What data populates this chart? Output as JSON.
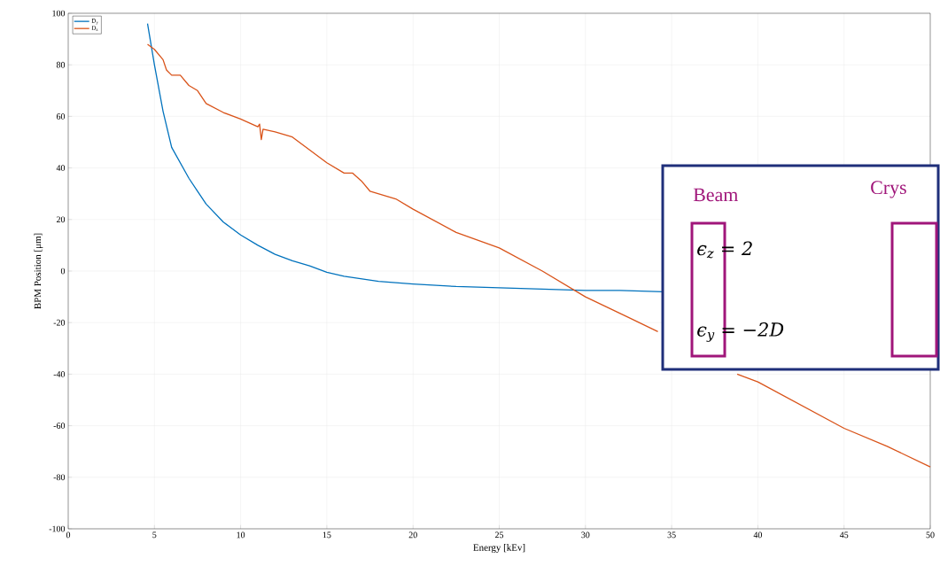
{
  "chart_data": {
    "type": "line",
    "xlabel": "Energy [kEv]",
    "ylabel": "BPM Position [μm]",
    "xlim": [
      0,
      50
    ],
    "ylim": [
      -100,
      100
    ],
    "xticks": [
      0,
      5,
      10,
      15,
      20,
      25,
      30,
      35,
      40,
      45,
      50
    ],
    "yticks": [
      -100,
      -80,
      -60,
      -40,
      -20,
      0,
      20,
      40,
      60,
      80,
      100
    ],
    "grid": true,
    "legend": "top left",
    "series": [
      {
        "name": "D$_{y}$",
        "color": "#0072bd",
        "x": [
          4.6,
          4.8,
          5,
          5.5,
          6,
          6.5,
          7,
          7.5,
          8,
          9,
          10,
          11,
          12,
          13,
          14,
          15,
          16,
          17,
          18,
          20,
          22.5,
          25,
          27.5,
          30,
          32,
          34.5
        ],
        "values": [
          96,
          88,
          80,
          62,
          48,
          42,
          36,
          31,
          26,
          19,
          14,
          10,
          6.5,
          4,
          2,
          -0.5,
          -2,
          -3,
          -4,
          -5,
          -6,
          -6.5,
          -7,
          -7.5,
          -7.5,
          -8
        ]
      },
      {
        "name": "D$_{z}$",
        "color": "#d95319",
        "x": [
          4.6,
          5,
          5.5,
          5.7,
          6,
          6.5,
          7,
          7.5,
          8,
          9,
          10,
          11,
          11.1,
          11.2,
          11.3,
          12,
          13,
          14,
          15,
          16,
          16.5,
          17,
          17.5,
          19,
          20,
          22.5,
          25,
          27.5,
          30,
          32.5,
          34.2,
          36.5,
          38.8,
          40,
          42.5,
          45,
          47.5,
          50
        ],
        "values": [
          88,
          86,
          82,
          78,
          76,
          76,
          72,
          70,
          65,
          61.5,
          59,
          56,
          57,
          51,
          55,
          54,
          52,
          47,
          42,
          38,
          38,
          35,
          31,
          28,
          24,
          15,
          9,
          0,
          -10,
          -18,
          -23.5,
          null,
          -40,
          -43,
          -52,
          -61,
          -68,
          -76
        ]
      }
    ],
    "annotations": [
      "Beam",
      "Crys",
      "ϵ$_{z}$   =   2",
      "ϵ$_{y}$   = −2D"
    ]
  }
}
